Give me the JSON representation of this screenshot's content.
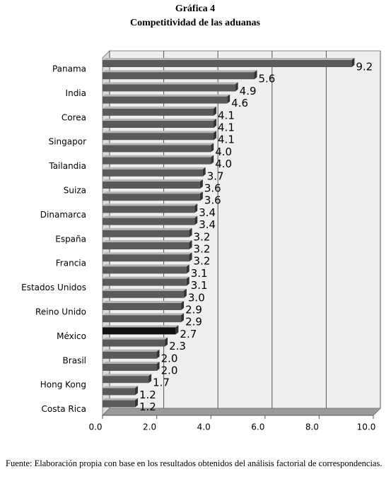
{
  "chart_data": {
    "type": "bar",
    "orientation": "horizontal",
    "title": "Gráfica 4",
    "subtitle": "Competitividad de las aduanas",
    "categories": [
      "Panama",
      null,
      "India",
      null,
      "Corea",
      null,
      "Singapor",
      null,
      "Tailandia",
      null,
      "Suiza",
      null,
      "Dinamarca",
      null,
      "España",
      null,
      "Francia",
      null,
      "Estados Unidos",
      null,
      "Reino Unido",
      null,
      "México",
      null,
      "Brasil",
      null,
      "Hong Kong",
      null,
      "Costa Rica"
    ],
    "values": [
      9.2,
      5.6,
      4.9,
      4.6,
      4.1,
      4.1,
      4.1,
      4.0,
      4.0,
      3.7,
      3.6,
      3.6,
      3.4,
      3.4,
      3.2,
      3.2,
      3.2,
      3.1,
      3.1,
      3.0,
      2.9,
      2.9,
      2.7,
      2.3,
      2.0,
      2.0,
      1.7,
      1.2,
      1.2
    ],
    "value_labels": [
      "9.2",
      "5.6",
      "4.9",
      "4.6",
      "4.1",
      "4.1",
      "4.1",
      "4.0",
      "4.0",
      "3.7",
      "3.6",
      "3.6",
      "3.4",
      "3.4",
      "3.2",
      "3.2",
      "3.2",
      "3.1",
      "3.1",
      "3.0",
      "2.9",
      "2.9",
      "2.7",
      "2.3",
      "2.0",
      "2.0",
      "1.7",
      "1.2",
      "1.2"
    ],
    "color": "#5a5a5a",
    "highlight_category": "México",
    "highlight_color": "#111111",
    "xlim": [
      0,
      10
    ],
    "xticks": [
      {
        "value": 0,
        "label": "0.0"
      },
      {
        "value": 2,
        "label": "2.0"
      },
      {
        "value": 4,
        "label": "4.0"
      },
      {
        "value": 6,
        "label": "6.0"
      },
      {
        "value": 8,
        "label": "8.0"
      },
      {
        "value": 10,
        "label": "10.0"
      }
    ],
    "grid": true
  },
  "footer": {
    "source": "Fuente: Elaboración propia con base en los resultados obtenidos del análisis factorial de correspondencias."
  }
}
